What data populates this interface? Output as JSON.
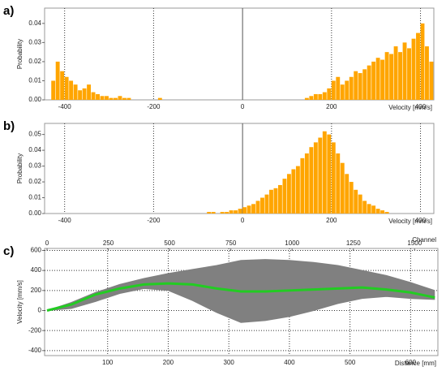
{
  "chart_data": [
    {
      "type": "histogram",
      "label": "a)",
      "ylabel": "Probability",
      "xlabel": "Velocity [mm/s]",
      "color": "#ffa500",
      "bins": [
        -430,
        -420,
        -410,
        -400,
        -390,
        -380,
        -370,
        -360,
        -350,
        -340,
        -330,
        -320,
        -310,
        -300,
        -290,
        -280,
        -270,
        -260,
        -250,
        -240,
        -230,
        -220,
        -210,
        -200,
        -190,
        -180,
        -170,
        -160,
        -150,
        -140,
        -130,
        -120,
        -110,
        -100,
        -90,
        -80,
        -70,
        -60,
        -50,
        -40,
        -30,
        -20,
        -10,
        0,
        10,
        20,
        30,
        40,
        50,
        60,
        70,
        80,
        90,
        100,
        110,
        120,
        130,
        140,
        150,
        160,
        170,
        180,
        190,
        200,
        210,
        220,
        230,
        240,
        250,
        260,
        270,
        280,
        290,
        300,
        310,
        320,
        330,
        340,
        350,
        360,
        370,
        380,
        390,
        400,
        410,
        420,
        430
      ],
      "values": [
        0.01,
        0.02,
        0.015,
        0.012,
        0.01,
        0.008,
        0.005,
        0.006,
        0.008,
        0.004,
        0.003,
        0.002,
        0.002,
        0.001,
        0.001,
        0.002,
        0.001,
        0.001,
        0,
        0,
        0,
        0,
        0,
        0,
        0.001,
        0,
        0,
        0,
        0,
        0,
        0,
        0,
        0,
        0,
        0,
        0,
        0,
        0,
        0,
        0,
        0,
        0,
        0,
        0,
        0,
        0,
        0,
        0,
        0,
        0,
        0,
        0,
        0,
        0,
        0,
        0,
        0,
        0.001,
        0.002,
        0.003,
        0.003,
        0.004,
        0.006,
        0.01,
        0.012,
        0.008,
        0.01,
        0.012,
        0.015,
        0.014,
        0.016,
        0.018,
        0.02,
        0.022,
        0.021,
        0.025,
        0.024,
        0.028,
        0.025,
        0.03,
        0.027,
        0.032,
        0.035,
        0.04,
        0.028,
        0.02
      ],
      "xlim": [
        -445,
        430
      ],
      "xticks": [
        -400,
        -200,
        0,
        200,
        400
      ],
      "ylim": [
        0,
        0.048
      ],
      "yticks": [
        {
          "value": 0,
          "label": "0.00"
        },
        {
          "value": 0.01,
          "label": "0.01"
        },
        {
          "value": 0.02,
          "label": "0.02"
        },
        {
          "value": 0.03,
          "label": "0.03"
        },
        {
          "value": 0.04,
          "label": "0.04"
        }
      ]
    },
    {
      "type": "histogram",
      "label": "b)",
      "ylabel": "Probability",
      "xlabel": "Velocity [mm/s]",
      "color": "#ffa500",
      "bins": [
        -430,
        -420,
        -410,
        -400,
        -390,
        -380,
        -370,
        -360,
        -350,
        -340,
        -330,
        -320,
        -310,
        -300,
        -290,
        -280,
        -270,
        -260,
        -250,
        -240,
        -230,
        -220,
        -210,
        -200,
        -190,
        -180,
        -170,
        -160,
        -150,
        -140,
        -130,
        -120,
        -110,
        -100,
        -90,
        -80,
        -70,
        -60,
        -50,
        -40,
        -30,
        -20,
        -10,
        0,
        10,
        20,
        30,
        40,
        50,
        60,
        70,
        80,
        90,
        100,
        110,
        120,
        130,
        140,
        150,
        160,
        170,
        180,
        190,
        200,
        210,
        220,
        230,
        240,
        250,
        260,
        270,
        280,
        290,
        300,
        310,
        320,
        330,
        340,
        350,
        360,
        370,
        380,
        390,
        400,
        410,
        420,
        430
      ],
      "values": [
        0,
        0,
        0,
        0,
        0,
        0,
        0,
        0,
        0,
        0,
        0,
        0,
        0,
        0,
        0,
        0,
        0,
        0,
        0,
        0,
        0,
        0,
        0,
        0,
        0,
        0,
        0,
        0,
        0,
        0,
        0,
        0,
        0,
        0,
        0,
        0.001,
        0.001,
        0,
        0.001,
        0.001,
        0.002,
        0.002,
        0.003,
        0.004,
        0.005,
        0.006,
        0.008,
        0.01,
        0.012,
        0.015,
        0.016,
        0.018,
        0.022,
        0.025,
        0.028,
        0.03,
        0.035,
        0.038,
        0.042,
        0.045,
        0.048,
        0.052,
        0.05,
        0.045,
        0.038,
        0.032,
        0.025,
        0.02,
        0.015,
        0.012,
        0.008,
        0.006,
        0.005,
        0.003,
        0.002,
        0.001,
        0,
        0,
        0,
        0,
        0,
        0,
        0,
        0,
        0,
        0
      ],
      "xlim": [
        -445,
        430
      ],
      "xticks": [
        -400,
        -200,
        0,
        200,
        400
      ],
      "ylim": [
        0,
        0.057
      ],
      "yticks": [
        {
          "value": 0,
          "label": "0.00"
        },
        {
          "value": 0.01,
          "label": "0.01"
        },
        {
          "value": 0.02,
          "label": "0.02"
        },
        {
          "value": 0.03,
          "label": "0.03"
        },
        {
          "value": 0.04,
          "label": "0.04"
        },
        {
          "value": 0.05,
          "label": "0.05"
        }
      ]
    },
    {
      "type": "band",
      "label": "c)",
      "ylabel": "Velocity [mm/s]",
      "xlabel": "Distance [mm]",
      "x2label": "Channel",
      "x": [
        0,
        40,
        80,
        120,
        160,
        200,
        240,
        280,
        320,
        360,
        400,
        440,
        480,
        520,
        560,
        600,
        640
      ],
      "series": [
        {
          "color": "#808080",
          "values": [
            0,
            20,
            90,
            170,
            220,
            200,
            100,
            -20,
            -120,
            -100,
            -60,
            0,
            70,
            120,
            140,
            120,
            110
          ]
        },
        {
          "color": "#808080",
          "values": [
            0,
            80,
            180,
            260,
            320,
            370,
            410,
            450,
            500,
            510,
            500,
            480,
            450,
            400,
            350,
            280,
            200
          ]
        },
        {
          "color": "#22cc22",
          "values": [
            0,
            60,
            160,
            220,
            260,
            270,
            260,
            220,
            190,
            190,
            200,
            210,
            220,
            230,
            210,
            180,
            130
          ]
        }
      ],
      "xlim": [
        -4,
        645
      ],
      "xticks": [
        100,
        200,
        300,
        400,
        500,
        600
      ],
      "x2lim": [
        -10,
        1595
      ],
      "x2ticks": [
        0,
        250,
        500,
        750,
        1000,
        1250,
        1500
      ],
      "ylim": [
        -450,
        620
      ],
      "yticks": [
        -400,
        -200,
        0,
        200,
        400,
        600
      ],
      "grid": true
    }
  ]
}
